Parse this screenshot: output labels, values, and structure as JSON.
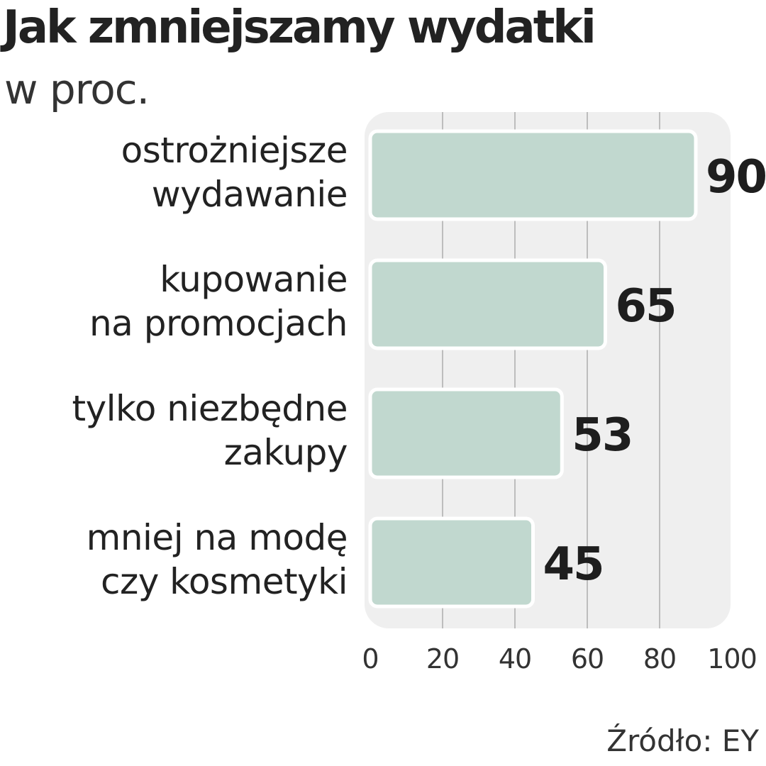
{
  "chart_data": {
    "type": "bar",
    "orientation": "horizontal",
    "title": "Jak zmniejszamy wydatki",
    "subtitle": "w proc.",
    "categories": [
      [
        "ostrożniejsze",
        "wydawanie"
      ],
      [
        "kupowanie",
        "na promocjach"
      ],
      [
        "tylko niezbędne",
        "zakupy"
      ],
      [
        "mniej na modę",
        "czy kosmetyki"
      ]
    ],
    "values": [
      90,
      65,
      53,
      45
    ],
    "value_labels": [
      "90",
      "65",
      "53",
      "45"
    ],
    "xlim": [
      0,
      100
    ],
    "xticks": [
      0,
      20,
      40,
      60,
      80,
      100
    ],
    "xtick_labels": [
      "0",
      "20",
      "40",
      "60",
      "80",
      "100"
    ],
    "grid": true,
    "source": "Źródło: EY",
    "colors": {
      "bar_fill": "#c1d8cf",
      "plot_background": "#efefef",
      "grid": "#bdbdbd"
    }
  }
}
